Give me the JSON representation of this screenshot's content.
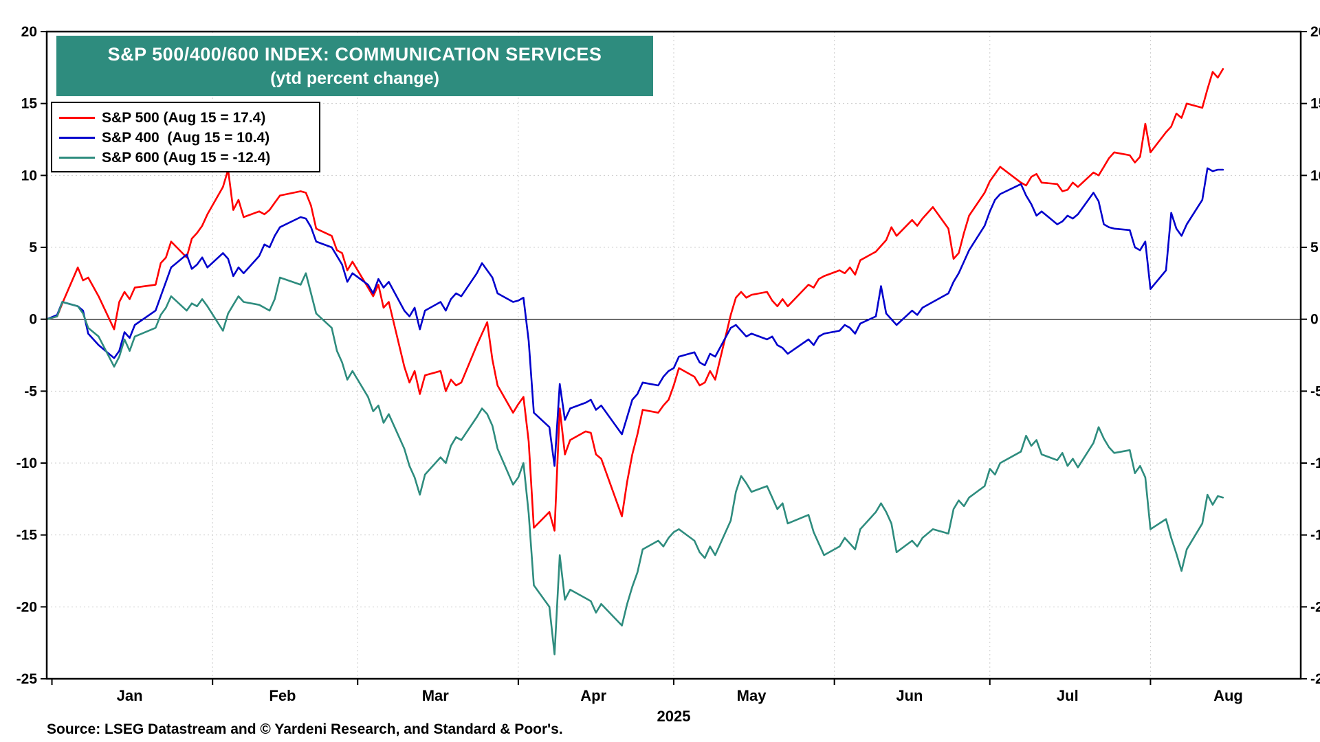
{
  "title": {
    "line1": "S&P 500/400/600 INDEX: COMMUNICATION SERVICES",
    "line2": "(ytd percent change)",
    "bg_color": "#2E8C7E"
  },
  "legend": [
    {
      "key": "sp500",
      "label": "S&P 500 (Aug 15 = 17.4)",
      "color": "#FF0000"
    },
    {
      "key": "sp400",
      "label": "S&P 400  (Aug 15 = 10.4)",
      "color": "#0000CC"
    },
    {
      "key": "sp600",
      "label": "S&P 600 (Aug 15 = -12.4)",
      "color": "#2E8C7E"
    }
  ],
  "x_axis": {
    "months": [
      "Jan",
      "Feb",
      "Mar",
      "Apr",
      "May",
      "Jun",
      "Jul",
      "Aug"
    ],
    "year": "2025"
  },
  "y_axis": {
    "min": -25,
    "max": 20,
    "step": 5
  },
  "source": "Source: LSEG Datastream and © Yardeni Research, and Standard & Poor's.",
  "chart_data": {
    "type": "line",
    "title": "S&P 500/400/600 INDEX: COMMUNICATION SERVICES",
    "subtitle": "(ytd percent change)",
    "ylabel": "ytd percent change",
    "ylim": [
      -25,
      20
    ],
    "y_ticks": [
      20,
      15,
      10,
      5,
      0,
      -5,
      -10,
      -15,
      -20,
      -25
    ],
    "x_domain": [
      0,
      242
    ],
    "x_axis_months": [
      "Jan",
      "Feb",
      "Mar",
      "Apr",
      "May",
      "Jun",
      "Jul",
      "Aug"
    ],
    "year": "2025",
    "grid": "dotted",
    "legend_position": "top-left",
    "dates": [
      "12/31",
      "1/2",
      "1/3",
      "1/6",
      "1/7",
      "1/8",
      "1/10",
      "1/13",
      "1/14",
      "1/15",
      "1/16",
      "1/17",
      "1/21",
      "1/22",
      "1/23",
      "1/24",
      "1/27",
      "1/28",
      "1/29",
      "1/30",
      "1/31",
      "2/3",
      "2/4",
      "2/5",
      "2/6",
      "2/7",
      "2/10",
      "2/11",
      "2/12",
      "2/13",
      "2/14",
      "2/18",
      "2/19",
      "2/20",
      "2/21",
      "2/24",
      "2/25",
      "2/26",
      "2/27",
      "2/28",
      "3/3",
      "3/4",
      "3/5",
      "3/6",
      "3/7",
      "3/10",
      "3/11",
      "3/12",
      "3/13",
      "3/14",
      "3/17",
      "3/18",
      "3/19",
      "3/20",
      "3/21",
      "3/24",
      "3/25",
      "3/26",
      "3/27",
      "3/28",
      "3/31",
      "4/1",
      "4/2",
      "4/3",
      "4/4",
      "4/7",
      "4/8",
      "4/9",
      "4/10",
      "4/11",
      "4/14",
      "4/15",
      "4/16",
      "4/17",
      "4/21",
      "4/22",
      "4/23",
      "4/24",
      "4/25",
      "4/28",
      "4/29",
      "4/30",
      "5/1",
      "5/2",
      "5/5",
      "5/6",
      "5/7",
      "5/8",
      "5/9",
      "5/12",
      "5/13",
      "5/14",
      "5/15",
      "5/16",
      "5/19",
      "5/20",
      "5/21",
      "5/22",
      "5/23",
      "5/27",
      "5/28",
      "5/29",
      "5/30",
      "6/2",
      "6/3",
      "6/4",
      "6/5",
      "6/6",
      "6/9",
      "6/10",
      "6/11",
      "6/12",
      "6/13",
      "6/16",
      "6/17",
      "6/18",
      "6/20",
      "6/23",
      "6/24",
      "6/25",
      "6/26",
      "6/27",
      "6/30",
      "7/1",
      "7/2",
      "7/3",
      "7/7",
      "7/8",
      "7/9",
      "7/10",
      "7/11",
      "7/14",
      "7/15",
      "7/16",
      "7/17",
      "7/18",
      "7/21",
      "7/22",
      "7/23",
      "7/24",
      "7/25",
      "7/28",
      "7/29",
      "7/30",
      "7/31",
      "8/1",
      "8/4",
      "8/5",
      "8/6",
      "8/7",
      "8/8",
      "8/11",
      "8/12",
      "8/13",
      "8/14",
      "8/15"
    ],
    "series": [
      {
        "name": "S&P 500",
        "key": "sp500",
        "color": "#FF0000",
        "last_label": "Aug 15 = 17.4",
        "values": [
          0.0,
          0.2,
          1.1,
          3.6,
          2.7,
          2.9,
          1.6,
          -0.7,
          1.2,
          1.9,
          1.4,
          2.2,
          2.4,
          3.9,
          4.3,
          5.4,
          4.3,
          5.6,
          6.0,
          6.5,
          7.3,
          9.2,
          10.4,
          7.6,
          8.3,
          7.1,
          7.5,
          7.3,
          7.6,
          8.1,
          8.6,
          8.9,
          8.8,
          7.9,
          6.3,
          5.8,
          4.8,
          4.6,
          3.4,
          4.0,
          2.2,
          1.6,
          2.4,
          0.8,
          1.2,
          -3.3,
          -4.4,
          -3.6,
          -5.2,
          -3.9,
          -3.6,
          -5.0,
          -4.2,
          -4.6,
          -4.4,
          -1.8,
          -1.0,
          -0.2,
          -2.8,
          -4.6,
          -6.5,
          -5.9,
          -5.4,
          -8.5,
          -14.5,
          -13.4,
          -14.7,
          -6.2,
          -9.4,
          -8.4,
          -7.8,
          -7.9,
          -9.4,
          -9.7,
          -13.7,
          -11.3,
          -9.4,
          -8.0,
          -6.3,
          -6.5,
          -6.0,
          -5.6,
          -4.6,
          -3.4,
          -4.0,
          -4.6,
          -4.4,
          -3.6,
          -4.2,
          0.3,
          1.5,
          1.9,
          1.5,
          1.7,
          1.9,
          1.3,
          0.9,
          1.4,
          0.9,
          2.4,
          2.2,
          2.8,
          3.0,
          3.4,
          3.2,
          3.6,
          3.1,
          4.1,
          4.7,
          5.1,
          5.5,
          6.4,
          5.8,
          6.9,
          6.5,
          7.0,
          7.8,
          6.3,
          4.2,
          4.6,
          6.0,
          7.2,
          8.8,
          9.6,
          10.1,
          10.6,
          9.5,
          9.3,
          9.9,
          10.1,
          9.5,
          9.4,
          8.9,
          9.0,
          9.5,
          9.2,
          10.2,
          10.0,
          10.6,
          11.2,
          11.6,
          11.4,
          10.9,
          11.3,
          13.6,
          11.6,
          13.0,
          13.4,
          14.3,
          14.0,
          15.0,
          14.7,
          16.0,
          17.2,
          16.8,
          17.4
        ]
      },
      {
        "name": "S&P 400",
        "key": "sp400",
        "color": "#0000CC",
        "last_label": "Aug 15 = 10.4",
        "values": [
          0.0,
          0.3,
          1.2,
          0.9,
          0.6,
          -1.0,
          -1.8,
          -2.7,
          -2.2,
          -0.9,
          -1.3,
          -0.4,
          0.6,
          1.6,
          2.6,
          3.6,
          4.5,
          3.5,
          3.8,
          4.3,
          3.6,
          4.6,
          4.2,
          3.0,
          3.6,
          3.2,
          4.4,
          5.2,
          5.0,
          5.8,
          6.4,
          7.1,
          7.0,
          6.4,
          5.4,
          5.0,
          4.4,
          3.8,
          2.6,
          3.2,
          2.4,
          1.8,
          2.8,
          2.2,
          2.6,
          0.6,
          0.2,
          0.8,
          -0.7,
          0.6,
          1.2,
          0.6,
          1.4,
          1.8,
          1.6,
          3.2,
          3.9,
          3.4,
          2.9,
          1.8,
          1.2,
          1.3,
          1.5,
          -1.5,
          -6.5,
          -7.5,
          -10.2,
          -4.5,
          -7.0,
          -6.2,
          -5.8,
          -5.6,
          -6.3,
          -6.0,
          -8.0,
          -6.8,
          -5.6,
          -5.2,
          -4.4,
          -4.6,
          -4.0,
          -3.6,
          -3.4,
          -2.6,
          -2.3,
          -3.0,
          -3.2,
          -2.4,
          -2.6,
          -0.6,
          -0.4,
          -0.8,
          -1.2,
          -1.0,
          -1.4,
          -1.2,
          -1.8,
          -2.0,
          -2.4,
          -1.4,
          -1.8,
          -1.2,
          -1.0,
          -0.8,
          -0.4,
          -0.6,
          -1.0,
          -0.3,
          0.2,
          2.3,
          0.4,
          0.0,
          -0.4,
          0.6,
          0.3,
          0.8,
          1.2,
          1.8,
          2.6,
          3.2,
          4.0,
          4.8,
          6.5,
          7.5,
          8.3,
          8.7,
          9.4,
          8.6,
          8.0,
          7.2,
          7.5,
          6.6,
          6.8,
          7.2,
          7.0,
          7.3,
          8.8,
          8.2,
          6.6,
          6.4,
          6.3,
          6.2,
          5.0,
          4.8,
          5.4,
          2.1,
          3.4,
          7.4,
          6.3,
          5.8,
          6.6,
          8.3,
          10.5,
          10.3,
          10.4,
          10.4
        ]
      },
      {
        "name": "S&P 600",
        "key": "sp600",
        "color": "#2E8C7E",
        "last_label": "Aug 15 = -12.4",
        "values": [
          0.0,
          0.2,
          1.2,
          0.9,
          0.4,
          -0.6,
          -1.2,
          -3.3,
          -2.6,
          -1.4,
          -2.2,
          -1.2,
          -0.6,
          0.3,
          0.8,
          1.6,
          0.6,
          1.1,
          0.9,
          1.4,
          0.9,
          -0.8,
          0.4,
          1.0,
          1.6,
          1.2,
          1.0,
          0.8,
          0.6,
          1.4,
          2.9,
          2.4,
          3.2,
          1.8,
          0.4,
          -0.6,
          -2.2,
          -3.0,
          -4.2,
          -3.6,
          -5.4,
          -6.4,
          -6.0,
          -7.2,
          -6.6,
          -9.0,
          -10.2,
          -11.0,
          -12.2,
          -10.8,
          -9.6,
          -10.0,
          -8.8,
          -8.2,
          -8.4,
          -6.8,
          -6.2,
          -6.6,
          -7.4,
          -9.0,
          -11.5,
          -11.0,
          -10.0,
          -13.5,
          -18.5,
          -20.0,
          -23.3,
          -16.4,
          -19.5,
          -18.8,
          -19.4,
          -19.6,
          -20.4,
          -19.8,
          -21.3,
          -19.8,
          -18.6,
          -17.6,
          -16.0,
          -15.4,
          -15.8,
          -15.2,
          -14.8,
          -14.6,
          -15.4,
          -16.2,
          -16.6,
          -15.8,
          -16.4,
          -14.0,
          -12.0,
          -10.9,
          -11.4,
          -12.0,
          -11.6,
          -12.4,
          -13.2,
          -12.8,
          -14.2,
          -13.6,
          -14.8,
          -15.6,
          -16.4,
          -15.8,
          -15.2,
          -15.6,
          -16.0,
          -14.6,
          -13.4,
          -12.8,
          -13.4,
          -14.2,
          -16.2,
          -15.4,
          -15.8,
          -15.2,
          -14.6,
          -14.9,
          -13.2,
          -12.6,
          -13.0,
          -12.4,
          -11.6,
          -10.4,
          -10.8,
          -10.0,
          -9.2,
          -8.1,
          -8.8,
          -8.4,
          -9.4,
          -9.8,
          -9.3,
          -10.2,
          -9.7,
          -10.3,
          -8.6,
          -7.5,
          -8.3,
          -8.9,
          -9.3,
          -9.1,
          -10.7,
          -10.2,
          -11.0,
          -14.6,
          -13.9,
          -15.2,
          -16.3,
          -17.5,
          -16.0,
          -14.2,
          -12.2,
          -12.9,
          -12.3,
          -12.4
        ]
      }
    ]
  }
}
